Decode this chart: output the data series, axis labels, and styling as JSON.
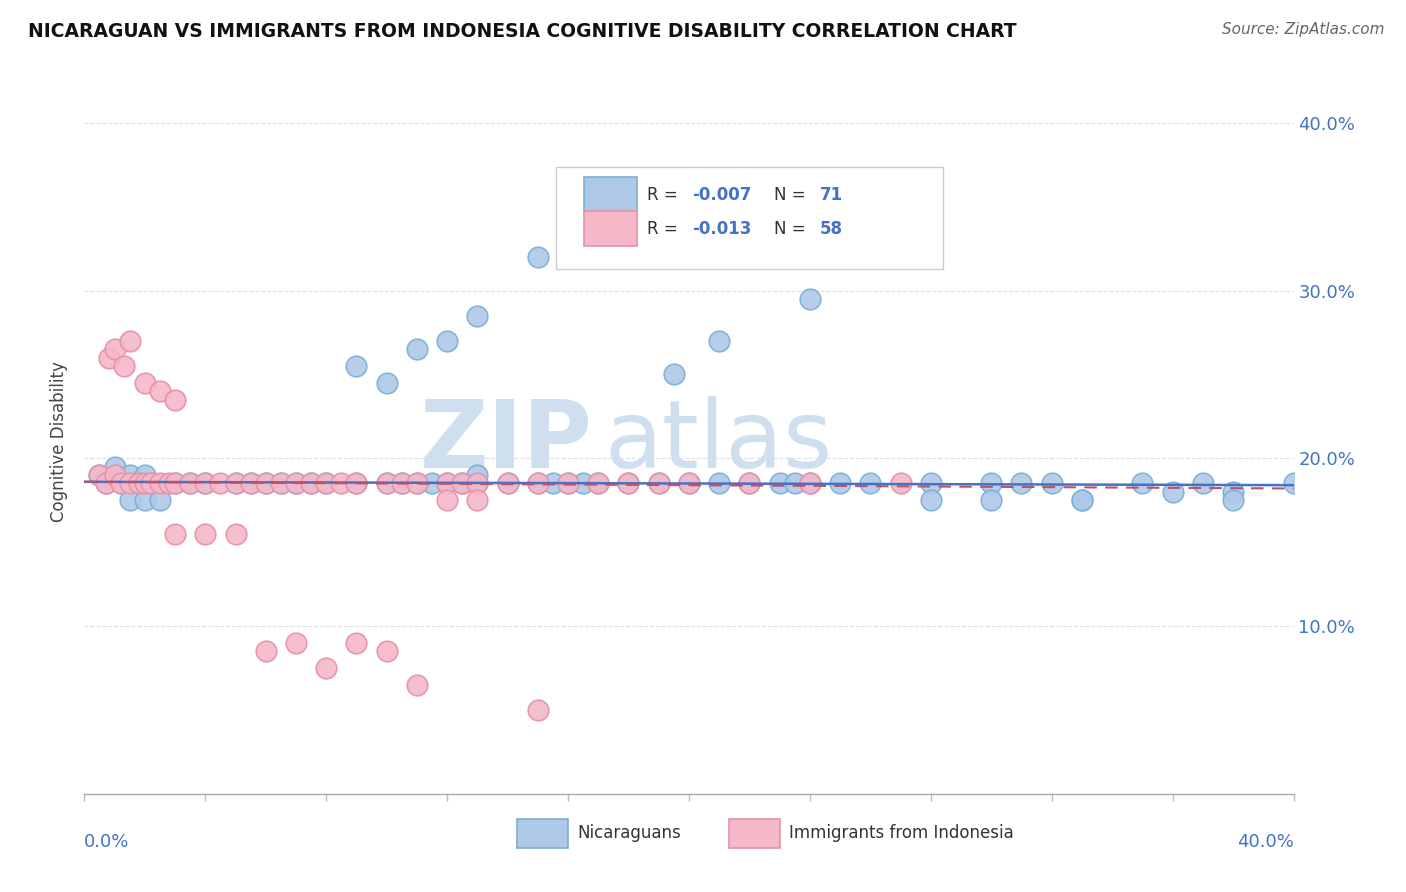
{
  "title": "NICARAGUAN VS IMMIGRANTS FROM INDONESIA COGNITIVE DISABILITY CORRELATION CHART",
  "source": "Source: ZipAtlas.com",
  "ylabel": "Cognitive Disability",
  "xlim": [
    0,
    0.4
  ],
  "ylim": [
    0.0,
    0.42
  ],
  "R_blue": -0.007,
  "N_blue": 71,
  "R_pink": -0.013,
  "N_pink": 58,
  "blue_fill": "#aec9e8",
  "blue_edge": "#7bafd4",
  "pink_fill": "#f4b8c8",
  "pink_edge": "#e890a8",
  "trend_blue": "#4472c4",
  "trend_pink": "#c0506a",
  "watermark_color": "#d0dff0",
  "background": "#ffffff",
  "grid_color": "#cccccc",
  "blue_scatter_x": [
    0.005,
    0.007,
    0.01,
    0.01,
    0.012,
    0.015,
    0.015,
    0.018,
    0.02,
    0.02,
    0.022,
    0.025,
    0.03,
    0.035,
    0.04,
    0.05,
    0.055,
    0.06,
    0.065,
    0.07,
    0.075,
    0.08,
    0.09,
    0.1,
    0.105,
    0.11,
    0.115,
    0.12,
    0.125,
    0.13,
    0.13,
    0.14,
    0.15,
    0.155,
    0.16,
    0.165,
    0.17,
    0.18,
    0.19,
    0.2,
    0.21,
    0.22,
    0.23,
    0.235,
    0.24,
    0.25,
    0.26,
    0.28,
    0.3,
    0.31,
    0.32,
    0.33,
    0.35,
    0.37,
    0.38,
    0.09,
    0.1,
    0.11,
    0.12,
    0.13,
    0.15,
    0.16,
    0.195,
    0.21,
    0.24,
    0.28,
    0.3,
    0.33,
    0.36,
    0.38,
    0.4
  ],
  "blue_scatter_y": [
    0.19,
    0.185,
    0.19,
    0.195,
    0.185,
    0.19,
    0.175,
    0.185,
    0.19,
    0.175,
    0.185,
    0.175,
    0.185,
    0.185,
    0.185,
    0.185,
    0.185,
    0.185,
    0.185,
    0.185,
    0.185,
    0.185,
    0.185,
    0.185,
    0.185,
    0.185,
    0.185,
    0.185,
    0.185,
    0.185,
    0.19,
    0.185,
    0.185,
    0.185,
    0.185,
    0.185,
    0.185,
    0.185,
    0.185,
    0.185,
    0.185,
    0.185,
    0.185,
    0.185,
    0.185,
    0.185,
    0.185,
    0.185,
    0.185,
    0.185,
    0.185,
    0.175,
    0.185,
    0.185,
    0.18,
    0.255,
    0.245,
    0.265,
    0.27,
    0.285,
    0.32,
    0.33,
    0.25,
    0.27,
    0.295,
    0.175,
    0.175,
    0.175,
    0.18,
    0.175,
    0.185
  ],
  "pink_scatter_x": [
    0.005,
    0.007,
    0.008,
    0.01,
    0.01,
    0.012,
    0.013,
    0.015,
    0.015,
    0.018,
    0.02,
    0.02,
    0.022,
    0.025,
    0.025,
    0.028,
    0.03,
    0.03,
    0.035,
    0.04,
    0.045,
    0.05,
    0.055,
    0.06,
    0.065,
    0.07,
    0.075,
    0.08,
    0.085,
    0.09,
    0.1,
    0.105,
    0.11,
    0.12,
    0.125,
    0.13,
    0.14,
    0.15,
    0.16,
    0.17,
    0.18,
    0.19,
    0.2,
    0.22,
    0.24,
    0.27,
    0.03,
    0.04,
    0.05,
    0.06,
    0.07,
    0.08,
    0.09,
    0.1,
    0.11,
    0.12,
    0.13,
    0.15
  ],
  "pink_scatter_y": [
    0.19,
    0.185,
    0.26,
    0.19,
    0.265,
    0.185,
    0.255,
    0.185,
    0.27,
    0.185,
    0.245,
    0.185,
    0.185,
    0.185,
    0.24,
    0.185,
    0.185,
    0.235,
    0.185,
    0.185,
    0.185,
    0.185,
    0.185,
    0.185,
    0.185,
    0.185,
    0.185,
    0.185,
    0.185,
    0.185,
    0.185,
    0.185,
    0.185,
    0.185,
    0.185,
    0.185,
    0.185,
    0.185,
    0.185,
    0.185,
    0.185,
    0.185,
    0.185,
    0.185,
    0.185,
    0.185,
    0.155,
    0.155,
    0.155,
    0.085,
    0.09,
    0.075,
    0.09,
    0.085,
    0.065,
    0.175,
    0.175,
    0.05
  ]
}
